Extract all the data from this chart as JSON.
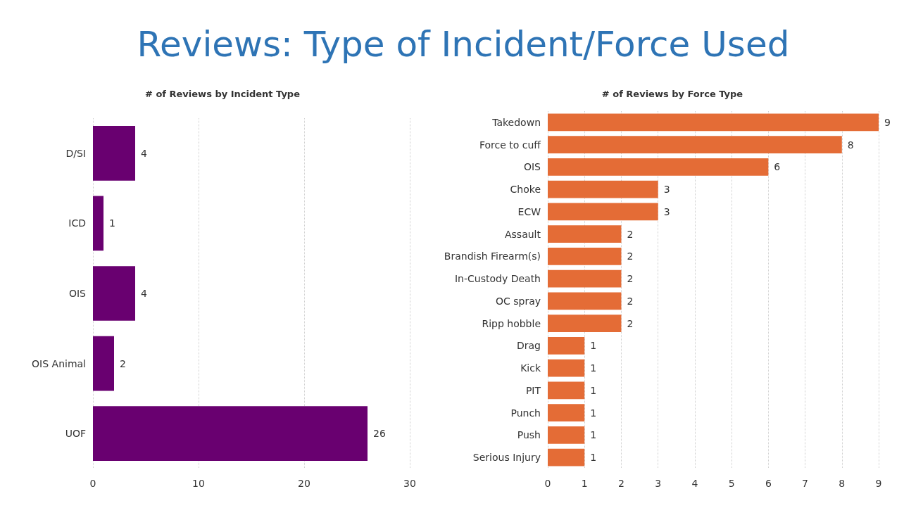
{
  "chart_data": [
    {
      "type": "bar",
      "title": "Reviews: Type of Incident/Force Used",
      "subtitle": "# of Reviews by Incident Type",
      "orientation": "horizontal",
      "categories": [
        "D/SI",
        "ICD",
        "OIS",
        "OIS Animal",
        "UOF"
      ],
      "values": [
        4,
        1,
        4,
        2,
        26
      ],
      "color": "#690070",
      "xlim": [
        0,
        30
      ],
      "xticks": [
        0,
        10,
        20,
        30
      ],
      "grid": "x",
      "data_labels": true
    },
    {
      "type": "bar",
      "title": "# of Reviews by Force Type",
      "orientation": "horizontal",
      "categories": [
        "Takedown",
        "Force to cuff",
        "OIS",
        "Choke",
        "ECW",
        "Assault",
        "Brandish Firearm(s)",
        "In-Custody Death",
        "OC spray",
        "Ripp hobble",
        "Drag",
        "Kick",
        "PIT",
        "Punch",
        "Push",
        "Serious Injury"
      ],
      "values": [
        9,
        8,
        6,
        3,
        3,
        2,
        2,
        2,
        2,
        2,
        1,
        1,
        1,
        1,
        1,
        1
      ],
      "color": "#e46c36",
      "xlim": [
        0,
        9
      ],
      "xticks": [
        0,
        1,
        2,
        3,
        4,
        5,
        6,
        7,
        8,
        9
      ],
      "grid": "x",
      "data_labels": true
    }
  ]
}
